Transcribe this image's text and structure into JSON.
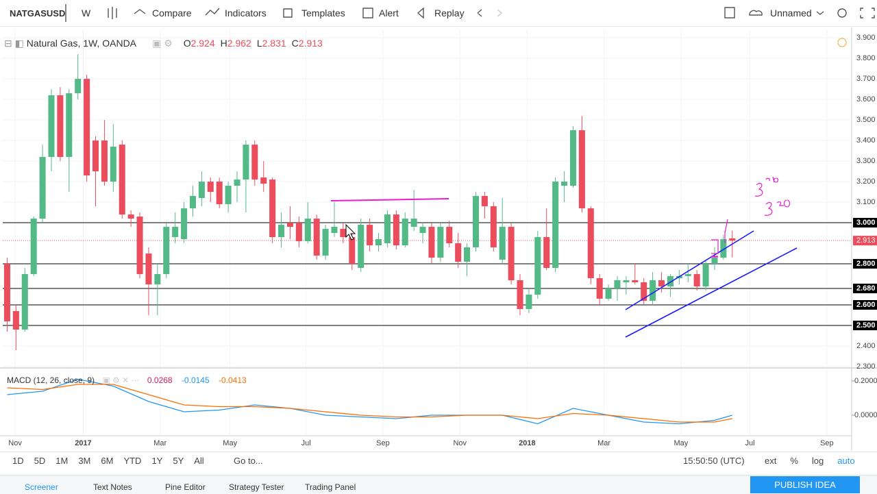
{
  "toolbar": {
    "symbol": "NATGASUSD",
    "interval": "W",
    "buttons": [
      "Compare",
      "Indicators",
      "Templates",
      "Alert",
      "Replay"
    ],
    "layout": "Unnamed"
  },
  "legend": {
    "title": "Natural Gas, 1W, OANDA",
    "ohlc": [
      {
        "label": "O",
        "value": 2.924
      },
      {
        "label": "H",
        "value": 2.962
      },
      {
        "label": "L",
        "value": 2.831
      },
      {
        "label": "C",
        "value": 2.913
      }
    ]
  },
  "macd_legend": {
    "title": "MACD (12, 26, close, 9)",
    "values": [
      0.0268,
      -0.0145,
      -0.0413
    ]
  },
  "chart_data": {
    "type": "candlestick",
    "up_color": "#53b987",
    "down_color": "#eb4d5c",
    "grid": true,
    "xlim": [
      -0.5,
      95.5
    ],
    "ylim": [
      2.3,
      3.937
    ],
    "xticks": [
      {
        "value": 0.9,
        "label": "Nov"
      },
      {
        "value": 8.6,
        "label": "2017"
      },
      {
        "value": 17.3,
        "label": "Mar"
      },
      {
        "value": 25.2,
        "label": "May"
      },
      {
        "value": 33.8,
        "label": "Jul"
      },
      {
        "value": 42.5,
        "label": "Sep"
      },
      {
        "value": 51.2,
        "label": "Nov"
      },
      {
        "value": 58.8,
        "label": "2018"
      },
      {
        "value": 67.5,
        "label": "Mar"
      },
      {
        "value": 76.2,
        "label": "May"
      },
      {
        "value": 84,
        "label": "Jul"
      },
      {
        "value": 92.7,
        "label": "Sep"
      }
    ],
    "yticks": [
      {
        "value": 3.9,
        "label": "3.900"
      },
      {
        "value": 3.8,
        "label": "3.800"
      },
      {
        "value": 3.7,
        "label": "3.700"
      },
      {
        "value": 3.6,
        "label": "3.600"
      },
      {
        "value": 3.5,
        "label": "3.500"
      },
      {
        "value": 3.4,
        "label": "3.400"
      },
      {
        "value": 3.3,
        "label": "3.300"
      },
      {
        "value": 3.2,
        "label": "3.200"
      },
      {
        "value": 3.1,
        "label": "3.100"
      },
      {
        "value": 2.4,
        "label": "2.400"
      },
      {
        "value": 2.3,
        "label": "2.300"
      }
    ],
    "levels": [
      {
        "value": 3,
        "label": "3.000"
      },
      {
        "value": 2.8,
        "label": "2.800"
      },
      {
        "value": 2.68,
        "label": "2.680"
      },
      {
        "value": 2.6,
        "label": "2.600"
      },
      {
        "value": 2.5,
        "label": "2.500"
      }
    ],
    "last_price": {
      "value": 2.913,
      "label": "2.913",
      "color": "#eb4d5c"
    },
    "candles": [
      [
        2.8,
        2.83,
        2.47,
        2.52
      ],
      [
        2.57,
        2.6,
        2.38,
        2.48
      ],
      [
        2.48,
        2.78,
        2.47,
        2.75
      ],
      [
        2.75,
        3.03,
        2.74,
        3.02
      ],
      [
        3.02,
        3.38,
        3,
        3.32
      ],
      [
        3.32,
        3.65,
        3.25,
        3.62
      ],
      [
        3.62,
        3.66,
        3.3,
        3.32
      ],
      [
        3.32,
        3.65,
        3.15,
        3.63
      ],
      [
        3.63,
        3.82,
        3.6,
        3.7
      ],
      [
        3.7,
        3.72,
        3.2,
        3.23
      ],
      [
        3.4,
        3.42,
        3.08,
        3.25
      ],
      [
        3.4,
        3.5,
        3.18,
        3.2
      ],
      [
        3.2,
        3.48,
        3.15,
        3.37
      ],
      [
        3.38,
        3.4,
        3.02,
        3.04
      ],
      [
        3.04,
        3.06,
        2.98,
        3.02
      ],
      [
        3.03,
        3.05,
        2.73,
        2.75
      ],
      [
        2.85,
        2.88,
        2.55,
        2.7
      ],
      [
        2.7,
        2.8,
        2.55,
        2.75
      ],
      [
        2.75,
        3,
        2.73,
        2.98
      ],
      [
        2.93,
        3.05,
        2.9,
        2.98
      ],
      [
        2.92,
        3.1,
        2.9,
        3.07
      ],
      [
        3.07,
        3.18,
        3.03,
        3.13
      ],
      [
        3.12,
        3.25,
        3.08,
        3.2
      ],
      [
        3.2,
        3.22,
        3.1,
        3.15
      ],
      [
        3.2,
        3.22,
        3.07,
        3.09
      ],
      [
        3.09,
        3.2,
        3.05,
        3.18
      ],
      [
        3.18,
        3.25,
        3.1,
        3.21
      ],
      [
        3.21,
        3.4,
        3.05,
        3.38
      ],
      [
        3.38,
        3.4,
        3.18,
        3.21
      ],
      [
        3.22,
        3.3,
        3.15,
        3.19
      ],
      [
        3.21,
        3.22,
        2.9,
        2.93
      ],
      [
        2.93,
        3.05,
        2.88,
        2.99
      ],
      [
        3,
        3.08,
        2.92,
        2.98
      ],
      [
        3,
        3.03,
        2.88,
        2.91
      ],
      [
        2.91,
        3.1,
        2.9,
        3.02
      ],
      [
        3.02,
        3.04,
        2.82,
        2.84
      ],
      [
        2.84,
        2.99,
        2.82,
        2.97
      ],
      [
        2.95,
        3.1,
        2.93,
        2.98
      ],
      [
        2.97,
        3,
        2.9,
        2.93
      ],
      [
        2.93,
        2.95,
        2.77,
        2.8
      ],
      [
        2.78,
        3.02,
        2.76,
        2.99
      ],
      [
        2.99,
        3.02,
        2.86,
        2.89
      ],
      [
        2.89,
        2.95,
        2.86,
        2.92
      ],
      [
        2.9,
        3.06,
        2.88,
        3.04
      ],
      [
        3.04,
        3.06,
        2.87,
        2.89
      ],
      [
        2.89,
        3.05,
        2.88,
        3.02
      ],
      [
        2.98,
        3.16,
        2.96,
        3.02
      ],
      [
        2.95,
        3,
        2.9,
        2.98
      ],
      [
        2.98,
        3,
        2.8,
        2.83
      ],
      [
        2.83,
        3,
        2.81,
        2.98
      ],
      [
        2.98,
        3.01,
        2.88,
        2.9
      ],
      [
        2.9,
        2.95,
        2.78,
        2.81
      ],
      [
        2.81,
        2.9,
        2.74,
        2.88
      ],
      [
        2.88,
        3.15,
        2.86,
        3.13
      ],
      [
        3.13,
        3.15,
        3.02,
        3.08
      ],
      [
        3.08,
        3.1,
        2.86,
        2.88
      ],
      [
        2.82,
        3.12,
        2.8,
        2.98
      ],
      [
        2.98,
        3,
        2.7,
        2.72
      ],
      [
        2.72,
        2.75,
        2.55,
        2.58
      ],
      [
        2.58,
        2.68,
        2.56,
        2.65
      ],
      [
        2.65,
        2.96,
        2.63,
        2.93
      ],
      [
        2.93,
        3.07,
        2.77,
        2.78
      ],
      [
        2.78,
        3.22,
        2.76,
        3.2
      ],
      [
        3.18,
        3.25,
        3.1,
        3.2
      ],
      [
        3.18,
        3.47,
        3.17,
        3.45
      ],
      [
        3.45,
        3.52,
        3.05,
        3.07
      ],
      [
        3.07,
        3.08,
        2.7,
        2.73
      ],
      [
        2.73,
        2.75,
        2.6,
        2.63
      ],
      [
        2.63,
        2.7,
        2.62,
        2.68
      ],
      [
        2.68,
        2.74,
        2.62,
        2.72
      ],
      [
        2.71,
        2.74,
        2.65,
        2.72
      ],
      [
        2.72,
        2.8,
        2.7,
        2.71
      ],
      [
        2.71,
        2.73,
        2.6,
        2.62
      ],
      [
        2.62,
        2.76,
        2.6,
        2.72
      ],
      [
        2.72,
        2.76,
        2.66,
        2.69
      ],
      [
        2.69,
        2.75,
        2.64,
        2.74
      ],
      [
        2.73,
        2.77,
        2.7,
        2.74
      ],
      [
        2.74,
        2.8,
        2.71,
        2.75
      ],
      [
        2.75,
        2.77,
        2.67,
        2.69
      ],
      [
        2.69,
        2.82,
        2.67,
        2.8
      ],
      [
        2.8,
        2.88,
        2.77,
        2.83
      ],
      [
        2.83,
        2.94,
        2.82,
        2.92
      ],
      [
        2.924,
        2.962,
        2.831,
        2.913
      ]
    ],
    "macd": {
      "ylim": [
        -0.12,
        0.272
      ],
      "yticks": [
        {
          "value": 0.2,
          "label": "0.2000"
        },
        {
          "value": 0,
          "label": "0.0000"
        }
      ],
      "x": [
        0,
        4,
        8,
        12,
        16,
        20,
        24,
        28,
        32,
        36,
        40,
        44,
        48,
        52,
        56,
        60,
        64,
        68,
        72,
        76,
        80,
        82
      ],
      "series": [
        {
          "name": "MACD",
          "color": "#2196f3",
          "values": [
            0.12,
            0.14,
            0.21,
            0.17,
            0.08,
            0.02,
            0.03,
            0.06,
            0.04,
            0,
            -0.01,
            -0.02,
            0,
            0,
            0,
            -0.05,
            0.04,
            0,
            -0.04,
            -0.05,
            -0.03,
            0
          ]
        },
        {
          "name": "Signal",
          "color": "#ff6d00",
          "values": [
            0.16,
            0.15,
            0.18,
            0.18,
            0.12,
            0.06,
            0.05,
            0.05,
            0.04,
            0.02,
            0,
            -0.01,
            -0.01,
            0,
            0,
            -0.02,
            0.01,
            0,
            -0.02,
            -0.04,
            -0.04,
            -0.02
          ]
        }
      ]
    }
  },
  "bottom_bar": {
    "ranges": [
      "1D",
      "5D",
      "1M",
      "3M",
      "6M",
      "YTD",
      "1Y",
      "5Y",
      "All"
    ],
    "goto": "Go to...",
    "time": "15:50:50 (UTC)",
    "options": [
      "ext",
      "%",
      "log",
      "auto"
    ]
  },
  "footer": {
    "tabs": [
      "Screener",
      "Text Notes",
      "Pine Editor",
      "Strategy Tester",
      "Trading Panel"
    ],
    "publish": "PUBLISH IDEA"
  }
}
